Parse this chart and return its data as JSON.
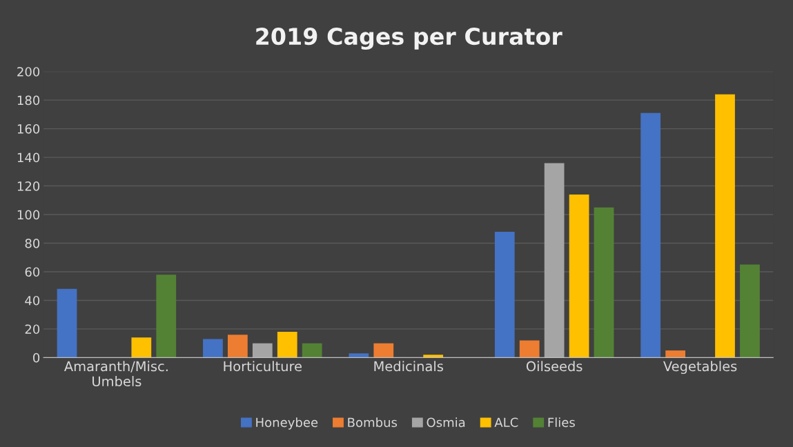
{
  "chart_data": {
    "type": "bar",
    "title": "2019 Cages per Curator",
    "categories": [
      "Amaranth/Misc.\nUmbels",
      "Horticulture",
      "Medicinals",
      "Oilseeds",
      "Vegetables"
    ],
    "series": [
      {
        "name": "Honeybee",
        "color": "#4472c4",
        "values": [
          48,
          13,
          3,
          88,
          171
        ]
      },
      {
        "name": "Bombus",
        "color": "#ed7d31",
        "values": [
          0,
          16,
          10,
          12,
          5
        ]
      },
      {
        "name": "Osmia",
        "color": "#a5a5a5",
        "values": [
          0,
          10,
          0,
          136,
          0
        ]
      },
      {
        "name": "ALC",
        "color": "#ffc000",
        "values": [
          14,
          18,
          2,
          114,
          184
        ]
      },
      {
        "name": "Flies",
        "color": "#548235",
        "values": [
          58,
          10,
          0,
          105,
          65
        ]
      }
    ],
    "ylim": [
      0,
      200
    ],
    "yticks": [
      0,
      20,
      40,
      60,
      80,
      100,
      120,
      140,
      160,
      180,
      200
    ],
    "grid": "y",
    "legend": "bottom"
  }
}
